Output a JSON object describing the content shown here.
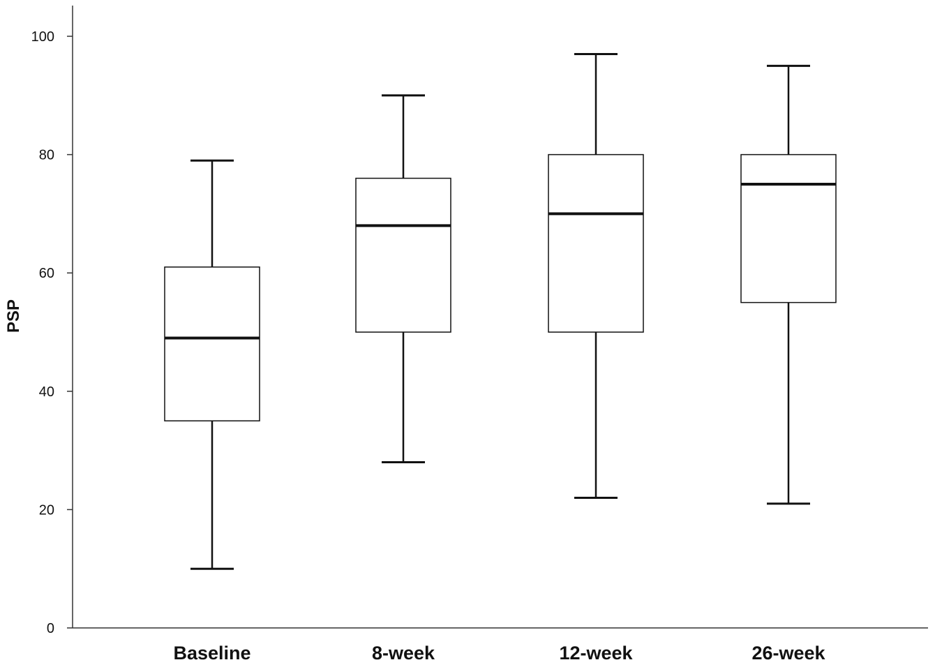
{
  "chart_data": {
    "type": "boxplot",
    "title": "",
    "xlabel": "",
    "ylabel": "PSP",
    "ylim": [
      0,
      100
    ],
    "yticks": [
      "0",
      "20",
      "40",
      "60",
      "80",
      "100"
    ],
    "ytick_values": [
      0,
      20,
      40,
      60,
      80,
      100
    ],
    "grid": false,
    "legend": "none",
    "colors": {
      "box_fill": "#ffffff",
      "stroke": "#111111",
      "axis": "#333333"
    },
    "categories": [
      "Baseline",
      "8-week",
      "12-week",
      "26-week"
    ],
    "boxes": [
      {
        "category": "Baseline",
        "min": 10,
        "q1": 35,
        "median": 49,
        "q3": 61,
        "max": 79
      },
      {
        "category": "8-week",
        "min": 28,
        "q1": 50,
        "median": 68,
        "q3": 76,
        "max": 90
      },
      {
        "category": "12-week",
        "min": 22,
        "q1": 50,
        "median": 70,
        "q3": 80,
        "max": 97
      },
      {
        "category": "26-week",
        "min": 21,
        "q1": 55,
        "median": 75,
        "q3": 80,
        "max": 95
      }
    ]
  }
}
